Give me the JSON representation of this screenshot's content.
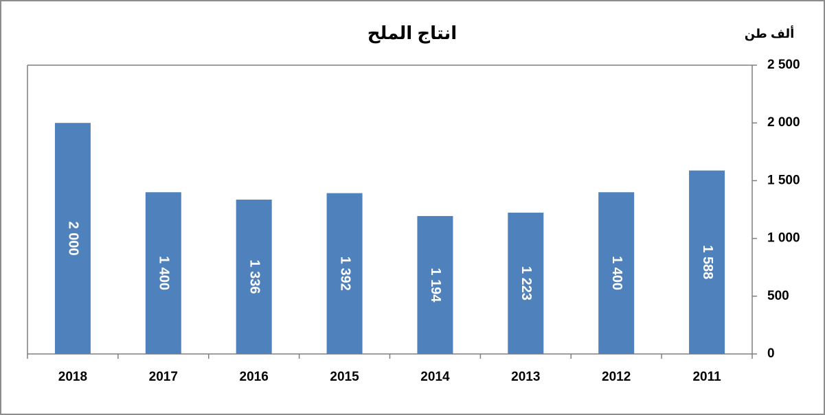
{
  "chart_data": {
    "type": "bar",
    "title": "انتاج الملح",
    "y_axis_label": "ألف طن",
    "categories": [
      "2018",
      "2017",
      "2016",
      "2015",
      "2014",
      "2013",
      "2012",
      "2011"
    ],
    "values": [
      2000,
      1400,
      1336,
      1392,
      1194,
      1223,
      1400,
      1588
    ],
    "value_labels": [
      "2 000",
      "1 400",
      "1 336",
      "1 392",
      "1 194",
      "1 223",
      "1 400",
      "1 588"
    ],
    "color": "#4f81bd",
    "ylim": [
      0,
      2500
    ],
    "yticks": [
      0,
      500,
      {
        "value": 1000,
        "label": "1 000"
      },
      {
        "value": 1500,
        "label": "1 500"
      },
      {
        "value": 2000,
        "label": "2 000"
      },
      {
        "value": 2500,
        "label": "2 500"
      }
    ],
    "y_axis_side": "right",
    "grid": false
  }
}
